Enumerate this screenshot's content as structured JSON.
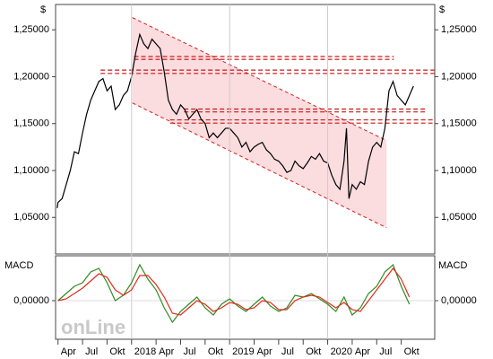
{
  "chart_data": [
    {
      "type": "line",
      "y_unit": "$",
      "xlim": [
        2.7,
        49.1
      ],
      "ylim": [
        1.011,
        1.277
      ],
      "yticks": [
        {
          "value": 1.25,
          "label": "1,25000"
        },
        {
          "value": 1.2,
          "label": "1,20000"
        },
        {
          "value": 1.15,
          "label": "1,15000"
        },
        {
          "value": 1.1,
          "label": "1,10000"
        },
        {
          "value": 1.05,
          "label": "1,05000"
        }
      ],
      "x": [
        2.9,
        3,
        3.5,
        4,
        4.5,
        5,
        5.5,
        6,
        6.5,
        7,
        7.5,
        8,
        8.5,
        9,
        9.5,
        10,
        10.5,
        11,
        11.5,
        12,
        12.5,
        13,
        13.5,
        14,
        14.5,
        15,
        15.5,
        16,
        16.5,
        17,
        17.5,
        18,
        18.5,
        19,
        19.5,
        20,
        20.5,
        21,
        21.5,
        22,
        22.5,
        23,
        23.5,
        24,
        24.5,
        25,
        25.5,
        26,
        26.5,
        27,
        27.5,
        28,
        28.5,
        29,
        29.5,
        30,
        30.5,
        31,
        31.5,
        32,
        32.5,
        33,
        33.5,
        34,
        34.5,
        35,
        35.5,
        36,
        36.5,
        37,
        37.5,
        38,
        38.3,
        38.6,
        39,
        39.5,
        40,
        40.5,
        41,
        41.5,
        42,
        42.5,
        43,
        43.5,
        44,
        44.5,
        45,
        45.5,
        46,
        46.5
      ],
      "series": [
        {
          "color": "#000000",
          "values": [
            1.06,
            1.066,
            1.07,
            1.085,
            1.1,
            1.12,
            1.118,
            1.14,
            1.16,
            1.175,
            1.185,
            1.195,
            1.198,
            1.185,
            1.19,
            1.165,
            1.17,
            1.18,
            1.185,
            1.2,
            1.225,
            1.245,
            1.235,
            1.23,
            1.24,
            1.235,
            1.23,
            1.205,
            1.175,
            1.165,
            1.16,
            1.17,
            1.165,
            1.155,
            1.16,
            1.165,
            1.155,
            1.15,
            1.135,
            1.14,
            1.135,
            1.14,
            1.145,
            1.145,
            1.14,
            1.135,
            1.125,
            1.13,
            1.12,
            1.125,
            1.128,
            1.13,
            1.122,
            1.118,
            1.112,
            1.11,
            1.105,
            1.098,
            1.1,
            1.11,
            1.105,
            1.102,
            1.108,
            1.115,
            1.112,
            1.118,
            1.11,
            1.108,
            1.095,
            1.085,
            1.08,
            1.11,
            1.145,
            1.07,
            1.085,
            1.08,
            1.088,
            1.085,
            1.11,
            1.125,
            1.13,
            1.125,
            1.145,
            1.185,
            1.195,
            1.18,
            1.175,
            1.17,
            1.18,
            1.19
          ]
        }
      ],
      "channel": {
        "x": [
          12.1,
          43.2
        ],
        "upper": [
          1.263,
          1.132
        ],
        "lower": [
          1.172,
          1.039
        ],
        "color": "#d42020",
        "fill": "#fbdcdf"
      },
      "levels": [
        {
          "value": 1.2215,
          "x": [
            12.3,
            44.1
          ]
        },
        {
          "value": 1.2185,
          "x": [
            12.3,
            44.1
          ]
        },
        {
          "value": 1.207,
          "x": [
            8.2,
            49.1
          ]
        },
        {
          "value": 1.2035,
          "x": [
            8.2,
            49.1
          ]
        },
        {
          "value": 1.1655,
          "x": [
            18.4,
            48
          ]
        },
        {
          "value": 1.1625,
          "x": [
            18.4,
            48
          ]
        },
        {
          "value": 1.154,
          "x": [
            16.7,
            49.1
          ]
        },
        {
          "value": 1.1505,
          "x": [
            16.7,
            49.1
          ]
        }
      ],
      "level_color": "#c81818"
    },
    {
      "type": "line",
      "title": "MACD",
      "watermark": "onLine",
      "xlim": [
        2.7,
        49.1
      ],
      "ylim": [
        -0.0215,
        0.025
      ],
      "yticks": [
        {
          "value": 0,
          "label": "0,00000"
        }
      ],
      "xticks": [
        {
          "value": 3,
          "label": "Apr"
        },
        {
          "value": 6,
          "label": "Jul"
        },
        {
          "value": 9,
          "label": "Okt"
        },
        {
          "value": 12,
          "label": "2018"
        },
        {
          "value": 15,
          "label": "Apr"
        },
        {
          "value": 18,
          "label": "Jul"
        },
        {
          "value": 21,
          "label": "Okt"
        },
        {
          "value": 24,
          "label": "2019"
        },
        {
          "value": 27,
          "label": "Apr"
        },
        {
          "value": 30,
          "label": "Jul"
        },
        {
          "value": 33,
          "label": "Okt"
        },
        {
          "value": 36,
          "label": "2020"
        },
        {
          "value": 39,
          "label": "Apr"
        },
        {
          "value": 42,
          "label": "Jul"
        },
        {
          "value": 45,
          "label": "Okt"
        }
      ],
      "x": [
        3,
        4,
        5,
        6,
        7,
        8,
        9,
        10,
        11,
        12,
        13,
        14,
        15,
        16,
        17,
        18,
        19,
        20,
        21,
        22,
        23,
        24,
        25,
        26,
        27,
        28,
        29,
        30,
        31,
        32,
        33,
        34,
        35,
        36,
        37,
        38,
        39,
        40,
        41,
        42,
        43,
        44,
        45,
        46
      ],
      "series": [
        {
          "color": "#2e8b22",
          "values": [
            0,
            0.004,
            0.008,
            0.01,
            0.016,
            0.018,
            0.01,
            0,
            0.003,
            0.01,
            0.02,
            0.012,
            0.006,
            -0.004,
            -0.012,
            -0.006,
            -0.002,
            0.002,
            -0.004,
            -0.008,
            -0.002,
            0.001,
            -0.003,
            -0.006,
            -0.002,
            0.002,
            -0.003,
            -0.006,
            -0.004,
            0.003,
            0.002,
            0.004,
            0.001,
            -0.002,
            -0.006,
            0.002,
            -0.008,
            -0.004,
            0.004,
            0.008,
            0.016,
            0.02,
            0.008,
            -0.002
          ]
        },
        {
          "color": "#e02a1a",
          "values": [
            0,
            0.001,
            0.004,
            0.007,
            0.011,
            0.015,
            0.013,
            0.006,
            0.003,
            0.006,
            0.014,
            0.014,
            0.009,
            0.002,
            -0.007,
            -0.008,
            -0.004,
            0,
            -0.002,
            -0.006,
            -0.004,
            -0.001,
            -0.002,
            -0.005,
            -0.004,
            0,
            -0.001,
            -0.005,
            -0.005,
            0,
            0.002,
            0.003,
            0.002,
            -0.001,
            -0.004,
            -0.001,
            -0.005,
            -0.006,
            0,
            0.006,
            0.012,
            0.018,
            0.012,
            0.002
          ]
        }
      ]
    }
  ]
}
